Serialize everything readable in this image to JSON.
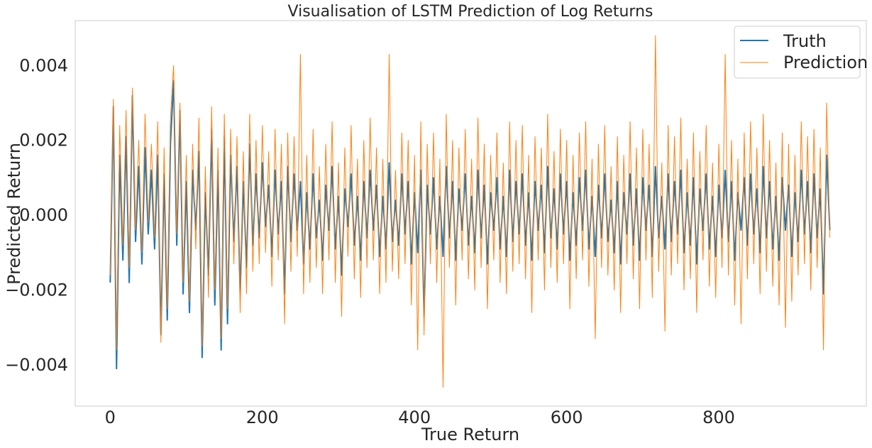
{
  "chart_data": {
    "type": "line",
    "title": "Visualisation of LSTM Prediction of Log Returns",
    "xlabel": "True Return",
    "ylabel": "Predicted Return",
    "xlim": [
      -46,
      994
    ],
    "ylim": [
      -0.0051,
      0.0052
    ],
    "xticks": [
      0,
      200,
      400,
      600,
      800
    ],
    "xtick_labels": [
      "0",
      "200",
      "400",
      "600",
      "800"
    ],
    "yticks": [
      -0.004,
      -0.002,
      0.0,
      0.002,
      0.004
    ],
    "ytick_labels": [
      "−0.004",
      "−0.002",
      "0.000",
      "0.002",
      "0.004"
    ],
    "grid": false,
    "legend_position": "top-right",
    "n_points": 947,
    "series": [
      {
        "name": "Truth",
        "color": "#1f77b4",
        "line_width": 2,
        "values_sampled_every_4": [
          -0.0018,
          0.0029,
          -0.0041,
          0.0016,
          -0.0012,
          0.0021,
          -0.0018,
          0.0032,
          -0.0007,
          0.0013,
          -0.0013,
          0.0018,
          -0.0005,
          0.0012,
          -0.0009,
          0.0016,
          -0.0032,
          0.0011,
          -0.0028,
          0.0019,
          0.0036,
          -0.0008,
          0.0028,
          -0.0021,
          0.0009,
          -0.0026,
          0.0012,
          -0.0004,
          0.0017,
          -0.0038,
          0.0006,
          -0.0016,
          0.0023,
          -0.0024,
          0.0012,
          -0.0036,
          0.0021,
          -0.0029,
          0.0016,
          -0.0007,
          0.0013,
          -0.0021,
          0.0009,
          -0.0014,
          0.0019,
          -0.0008,
          0.0011,
          -0.0006,
          0.0014,
          -0.0003,
          0.0008,
          -0.0011,
          0.0012,
          -0.0005,
          0.0009,
          -0.0021,
          0.0013,
          -0.0007,
          0.0011,
          -0.0004,
          0.0009,
          -0.0013,
          0.0006,
          -0.0009,
          0.0011,
          -0.0006,
          0.0004,
          -0.0012,
          0.0008,
          -0.0004,
          0.0013,
          -0.0009,
          0.0005,
          -0.0016,
          0.0007,
          -0.0003,
          0.0011,
          -0.0008,
          0.0005,
          -0.0012,
          0.0009,
          -0.0006,
          0.0012,
          -0.0004,
          0.0008,
          -0.0011,
          0.0005,
          -0.0009,
          0.0014,
          -0.0007,
          0.0004,
          -0.0008,
          0.0011,
          -0.0005,
          0.0009,
          -0.0013,
          0.0006,
          -0.001,
          0.0012,
          -0.0027,
          0.0008,
          -0.0005,
          0.001,
          -0.0009,
          0.0005,
          -0.0011,
          0.0013,
          -0.0006,
          0.0009,
          -0.0012,
          0.0007,
          -0.0004,
          0.0011,
          -0.0008,
          0.0005,
          -0.001,
          0.0012,
          -0.0006,
          0.0008,
          -0.0013,
          0.0006,
          -0.0004,
          0.001,
          -0.0009,
          0.0005,
          -0.0011,
          0.0012,
          -0.0007,
          0.0009,
          -0.0005,
          0.0011,
          -0.0008,
          0.0006,
          -0.0012,
          0.0009,
          -0.0004,
          0.0008,
          -0.001,
          0.0013,
          -0.0006,
          0.0007,
          -0.0009,
          0.0011,
          -0.0005,
          0.0009,
          -0.0012,
          0.0006,
          -0.0008,
          0.001,
          -0.0004,
          0.0012,
          -0.0009,
          0.0005,
          -0.0011,
          0.0008,
          -0.0006,
          0.0011,
          -0.0007,
          0.0004,
          -0.001,
          0.0009,
          -0.0013,
          0.0006,
          -0.0005,
          0.0011,
          -0.0008,
          0.0007,
          -0.0012,
          0.001,
          -0.0004,
          0.0008,
          -0.0011,
          0.0013,
          -0.0006,
          0.0005,
          -0.0009,
          0.0011,
          -0.0007,
          0.0009,
          -0.0005,
          0.0012,
          -0.001,
          0.0006,
          -0.0008,
          0.001,
          -0.0013,
          0.0007,
          -0.0004,
          0.0011,
          -0.0009,
          0.0005,
          -0.0011,
          0.0008,
          -0.0006,
          0.0012,
          -0.0007,
          0.0009,
          -0.0012,
          0.0006,
          -0.0004,
          0.001,
          -0.0008,
          0.0011,
          -0.0005,
          0.0007,
          -0.001,
          0.0013,
          -0.0006,
          0.0009,
          -0.0009,
          0.0005,
          -0.0012,
          0.001,
          -0.0004,
          0.0008,
          -0.0011,
          0.0006,
          -0.0007,
          0.0012,
          -0.0005,
          0.0009,
          -0.001,
          0.0011,
          -0.0006,
          0.0007,
          -0.0021,
          0.0016,
          -0.0004
        ]
      },
      {
        "name": "Prediction",
        "color": "#ff7f0e",
        "line_width": 1,
        "values_sampled_every_4": [
          -0.0016,
          0.0031,
          -0.0036,
          0.0024,
          -0.0008,
          0.0028,
          -0.0014,
          0.0034,
          -0.0004,
          0.002,
          -0.001,
          0.0027,
          -0.0002,
          0.0019,
          -0.0006,
          0.0025,
          -0.0034,
          0.0018,
          -0.0025,
          0.0026,
          0.004,
          -0.0005,
          0.003,
          -0.0018,
          0.0016,
          -0.0023,
          0.0019,
          -0.0009,
          0.0026,
          -0.0035,
          0.0013,
          -0.0022,
          0.0029,
          -0.002,
          0.0018,
          -0.0033,
          0.0027,
          -0.0025,
          0.0023,
          -0.0013,
          0.0021,
          -0.0026,
          0.0017,
          -0.0021,
          0.0027,
          -0.0015,
          0.002,
          -0.0013,
          0.0024,
          -0.001,
          0.0017,
          -0.0019,
          0.0023,
          -0.0012,
          0.0019,
          -0.0029,
          0.0022,
          -0.0015,
          0.0021,
          -0.0011,
          0.0043,
          -0.0021,
          0.0016,
          -0.0018,
          0.0023,
          -0.0014,
          0.0013,
          -0.0021,
          0.0019,
          -0.0012,
          0.0025,
          -0.0018,
          0.0014,
          -0.0027,
          0.0018,
          -0.0011,
          0.0024,
          -0.0017,
          0.0015,
          -0.0022,
          0.002,
          -0.0014,
          0.0026,
          -0.0012,
          0.0018,
          -0.0021,
          0.0015,
          -0.0018,
          0.0043,
          -0.0015,
          0.0012,
          -0.0017,
          0.0022,
          -0.0013,
          0.002,
          -0.0024,
          0.0016,
          -0.0036,
          0.0025,
          -0.0032,
          0.0019,
          -0.0013,
          0.0022,
          -0.0018,
          0.0015,
          -0.0046,
          0.0027,
          -0.0014,
          0.002,
          -0.0024,
          0.0018,
          -0.0012,
          0.0023,
          -0.0017,
          0.0015,
          -0.002,
          0.0026,
          -0.0014,
          0.0019,
          -0.0025,
          0.0016,
          -0.0012,
          0.0022,
          -0.0018,
          0.0014,
          -0.0021,
          0.0025,
          -0.0015,
          0.002,
          -0.0013,
          0.0024,
          -0.0017,
          0.0016,
          -0.0026,
          0.0021,
          -0.0012,
          0.0018,
          -0.002,
          0.0027,
          -0.0014,
          0.0017,
          -0.0018,
          0.0023,
          -0.0013,
          0.002,
          -0.0025,
          0.0016,
          -0.0017,
          0.0022,
          -0.0012,
          0.0025,
          -0.0019,
          0.0015,
          -0.0033,
          0.0019,
          -0.0014,
          0.0024,
          -0.0016,
          0.0013,
          -0.002,
          0.0021,
          -0.0026,
          0.0016,
          -0.0013,
          0.0025,
          -0.0017,
          0.0018,
          -0.0025,
          0.0023,
          -0.0012,
          0.0019,
          -0.0022,
          0.0048,
          -0.0015,
          0.0014,
          -0.0031,
          0.0024,
          -0.0016,
          0.0021,
          -0.0013,
          0.0026,
          -0.002,
          0.0015,
          -0.0017,
          0.0022,
          -0.0026,
          0.0017,
          -0.0012,
          0.0024,
          -0.0019,
          0.0014,
          -0.0022,
          0.0019,
          -0.0014,
          0.0043,
          -0.0016,
          0.002,
          -0.0024,
          0.0015,
          -0.0029,
          0.0022,
          -0.0017,
          0.0025,
          -0.0013,
          0.0018,
          -0.0021,
          0.0027,
          -0.0015,
          0.002,
          -0.0019,
          0.0014,
          -0.0024,
          0.0022,
          -0.003,
          0.0019,
          -0.0023,
          0.0016,
          -0.0016,
          0.0025,
          -0.0013,
          0.0021,
          -0.002,
          0.0023,
          -0.0014,
          0.0018,
          -0.0036,
          0.003,
          -0.0006
        ]
      }
    ]
  }
}
